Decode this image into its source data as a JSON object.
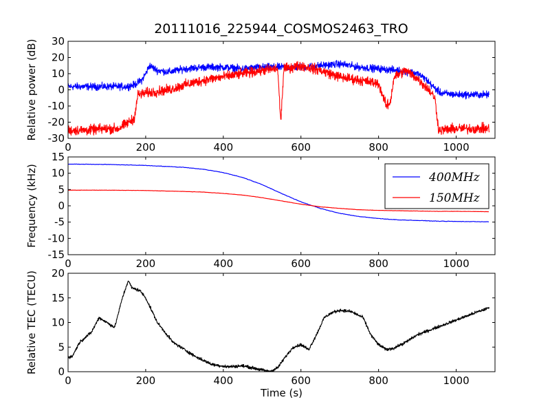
{
  "figure": {
    "title": "20111016_225944_COSMOS2463_TRO"
  },
  "chart_data": [
    {
      "type": "line",
      "name": "relative-power",
      "title": "20111016_225944_COSMOS2463_TRO",
      "xlabel": "",
      "ylabel": "Relative power (dB)",
      "xlim": [
        0,
        1100
      ],
      "ylim": [
        -30,
        30
      ],
      "xticks": [
        0,
        200,
        400,
        600,
        800,
        1000
      ],
      "yticks": [
        -30,
        -20,
        -10,
        0,
        10,
        20,
        30
      ],
      "noisy": true,
      "grid": false,
      "series": [
        {
          "color": "#0000ff",
          "noise": 1.8,
          "x": [
            0,
            50,
            100,
            150,
            170,
            190,
            200,
            210,
            230,
            260,
            300,
            350,
            400,
            450,
            500,
            550,
            600,
            650,
            700,
            750,
            800,
            850,
            880,
            900,
            920,
            940,
            960,
            1000,
            1050,
            1085
          ],
          "y": [
            2,
            2,
            2,
            2,
            3,
            6,
            10,
            15,
            12,
            11,
            13,
            14,
            14,
            13,
            14,
            14,
            14,
            15,
            16,
            14,
            13,
            12,
            11,
            10,
            7,
            2,
            -2,
            -3,
            -3,
            -3
          ]
        },
        {
          "color": "#ff0000",
          "noise": 2.5,
          "x": [
            0,
            50,
            100,
            130,
            150,
            170,
            180,
            200,
            230,
            260,
            300,
            350,
            400,
            450,
            500,
            540,
            548,
            556,
            600,
            650,
            700,
            750,
            800,
            820,
            830,
            840,
            870,
            900,
            930,
            945,
            955,
            1000,
            1050,
            1085
          ],
          "y": [
            -25,
            -25,
            -24,
            -24,
            -21,
            -18,
            -3,
            -2,
            -1,
            0,
            3,
            6,
            8,
            10,
            12,
            13,
            -20,
            13,
            15,
            12,
            8,
            6,
            4,
            -10,
            -8,
            8,
            12,
            7,
            0,
            -5,
            -25,
            -24,
            -24,
            -24
          ]
        }
      ]
    },
    {
      "type": "line",
      "name": "frequency",
      "xlabel": "",
      "ylabel": "Frequency (kHz)",
      "xlim": [
        0,
        1100
      ],
      "ylim": [
        -15,
        15
      ],
      "xticks": [
        0,
        200,
        400,
        600,
        800,
        1000
      ],
      "yticks": [
        -15,
        -10,
        -5,
        0,
        5,
        10,
        15
      ],
      "noisy": false,
      "grid": false,
      "legend": {
        "placement": "top-right",
        "entries": [
          {
            "label": "400MHz",
            "color": "#0000ff"
          },
          {
            "label": "150MHz",
            "color": "#ff0000"
          }
        ]
      },
      "series": [
        {
          "name": "400MHz",
          "color": "#0000ff",
          "noise": 0.06,
          "x": [
            0,
            100,
            200,
            300,
            350,
            400,
            450,
            500,
            550,
            600,
            650,
            700,
            750,
            800,
            850,
            900,
            950,
            1000,
            1085
          ],
          "y": [
            12.8,
            12.7,
            12.4,
            11.8,
            11.2,
            10.2,
            8.7,
            6.5,
            3.8,
            1.2,
            -0.8,
            -2.3,
            -3.3,
            -3.9,
            -4.3,
            -4.5,
            -4.7,
            -4.8,
            -4.9
          ]
        },
        {
          "name": "150MHz",
          "color": "#ff0000",
          "noise": 0.03,
          "x": [
            0,
            100,
            200,
            300,
            350,
            400,
            450,
            500,
            550,
            600,
            650,
            700,
            750,
            800,
            850,
            900,
            950,
            1000,
            1085
          ],
          "y": [
            4.8,
            4.8,
            4.7,
            4.4,
            4.2,
            3.8,
            3.3,
            2.5,
            1.5,
            0.5,
            -0.3,
            -0.8,
            -1.2,
            -1.4,
            -1.5,
            -1.6,
            -1.7,
            -1.7,
            -1.8
          ]
        }
      ]
    },
    {
      "type": "line",
      "name": "relative-tec",
      "xlabel": "Time (s)",
      "ylabel": "Relative TEC (TECU)",
      "xlim": [
        0,
        1100
      ],
      "ylim": [
        0,
        20
      ],
      "xticks": [
        0,
        200,
        400,
        600,
        800,
        1000
      ],
      "yticks": [
        0,
        5,
        10,
        15,
        20
      ],
      "noisy": true,
      "grid": false,
      "series": [
        {
          "color": "#000000",
          "noise": 0.25,
          "x": [
            0,
            10,
            30,
            60,
            80,
            100,
            120,
            140,
            155,
            165,
            185,
            200,
            230,
            270,
            300,
            330,
            370,
            410,
            450,
            480,
            520,
            540,
            560,
            580,
            600,
            620,
            640,
            660,
            680,
            700,
            730,
            760,
            780,
            800,
            820,
            840,
            870,
            900,
            950,
            1000,
            1050,
            1085
          ],
          "y": [
            3,
            3,
            6,
            8,
            11,
            10,
            9,
            15,
            18.5,
            17,
            16.5,
            15,
            10,
            6,
            4.5,
            3,
            1.5,
            1,
            1.2,
            0.7,
            0,
            0.8,
            3,
            5,
            5.5,
            4.5,
            7.5,
            11,
            12,
            12.5,
            12.2,
            11,
            7.5,
            5.5,
            4.5,
            4.8,
            6,
            7.5,
            9,
            10.5,
            12,
            13
          ]
        }
      ]
    }
  ]
}
